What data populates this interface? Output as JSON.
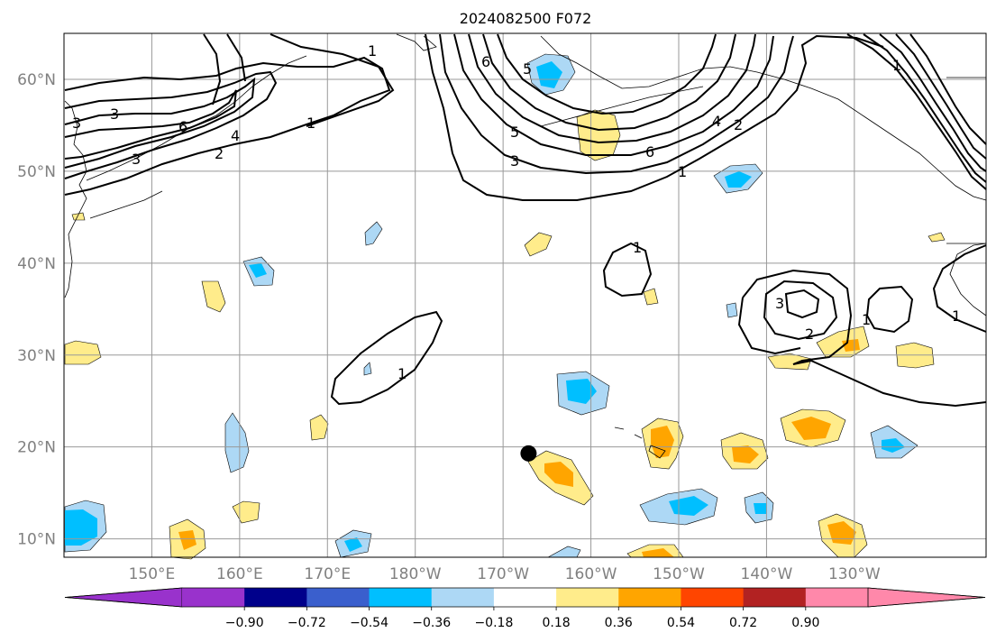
{
  "title": "2024082500 F072",
  "map": {
    "projection": "cylindrical",
    "lon_range": [
      140,
      245
    ],
    "lat_range": [
      8,
      65
    ],
    "grid": true,
    "lat_labels": [
      "10°N",
      "20°N",
      "30°N",
      "40°N",
      "50°N",
      "60°N"
    ],
    "lon_labels": [
      "150°E",
      "160°E",
      "170°E",
      "180°W",
      "170°W",
      "160°W",
      "150°W",
      "140°W",
      "130°W"
    ],
    "marker": {
      "lon": 192.9,
      "lat": 19.3,
      "color": "#000000"
    }
  },
  "colorbar": {
    "tick_labels": [
      "−0.90",
      "−0.72",
      "−0.54",
      "−0.36",
      "−0.18",
      "0.18",
      "0.36",
      "0.54",
      "0.72",
      "0.90"
    ],
    "colors": [
      "#9932cc",
      "#00008b",
      "#3a5fcd",
      "#00bfff",
      "#add8f5",
      "#ffffff",
      "#ffec8b",
      "#ffa500",
      "#ff4500",
      "#b22222",
      "#ff88aa"
    ],
    "extend": "both"
  },
  "contour_labels": [
    "1",
    "1",
    "1",
    "1",
    "1",
    "1",
    "1",
    "2",
    "2",
    "2",
    "3",
    "3",
    "3",
    "3",
    "4",
    "4",
    "5",
    "5",
    "6",
    "6",
    "6",
    "3",
    "1"
  ]
}
